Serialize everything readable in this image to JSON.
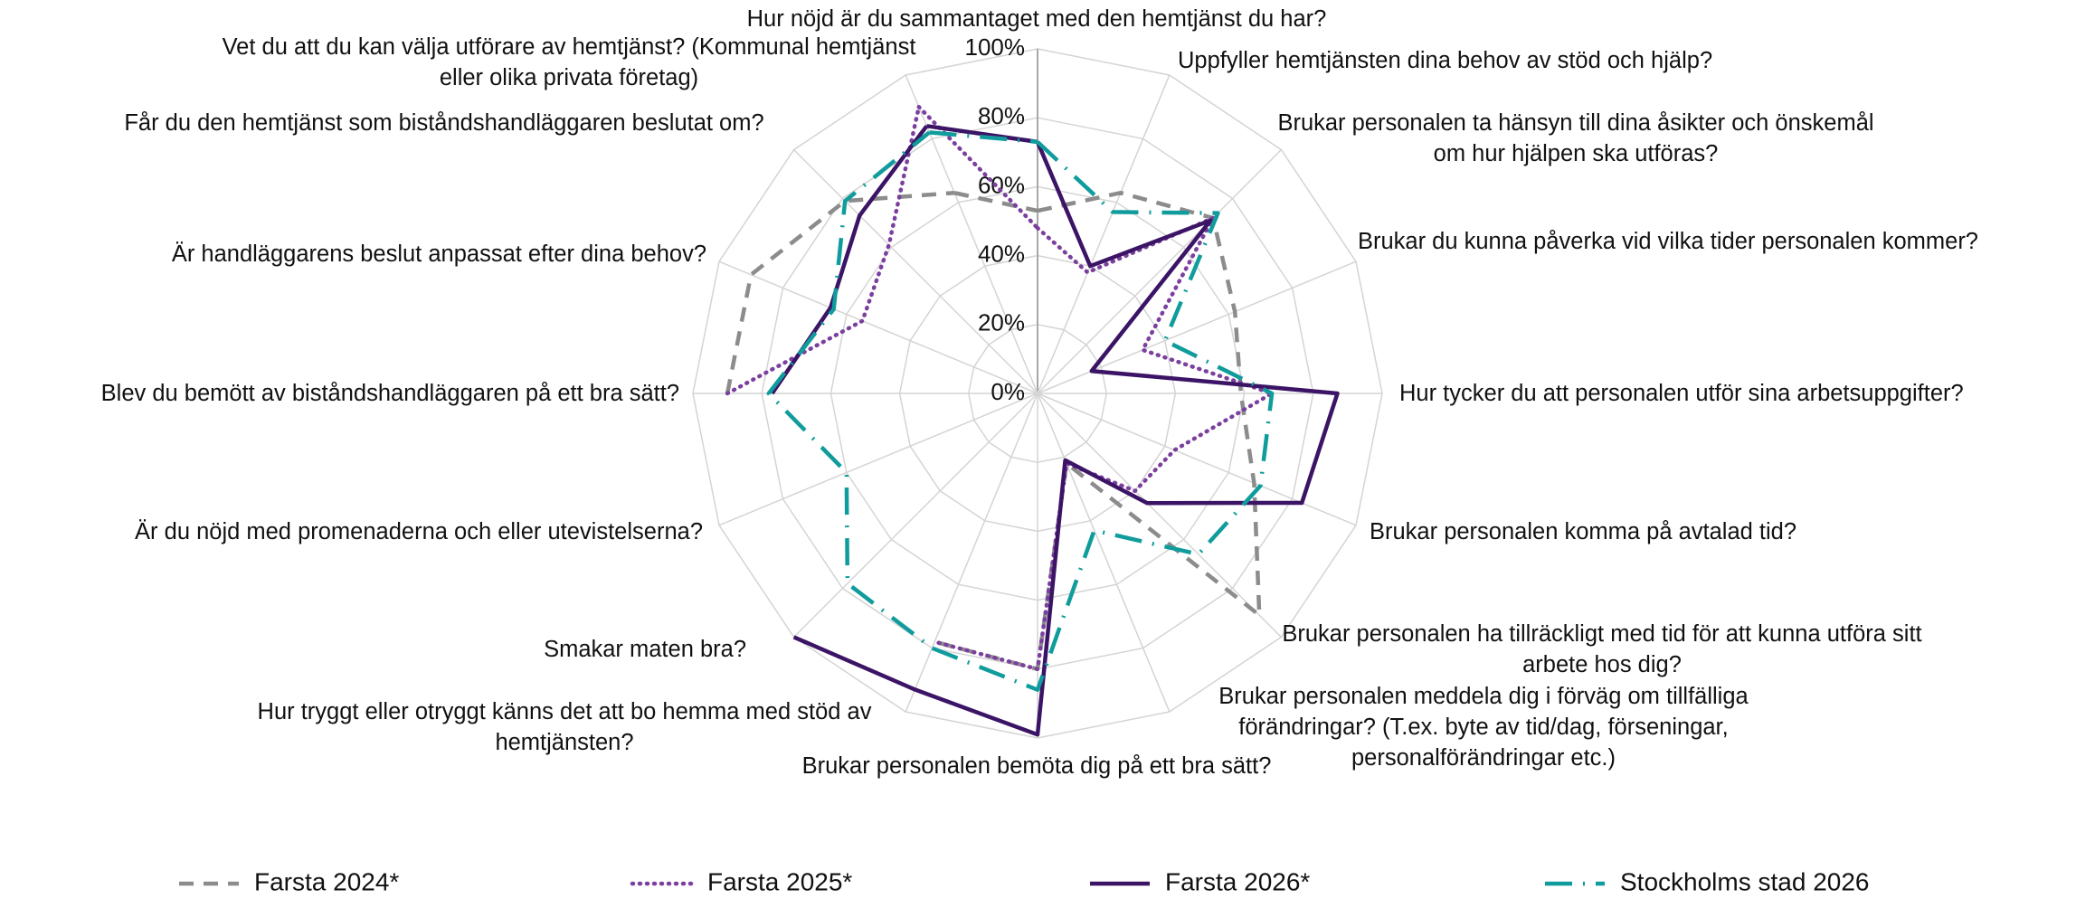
{
  "chart_data": {
    "type": "radar",
    "categories": [
      "Hur nöjd är du sammantaget med den hemtjänst du har?",
      "Uppfyller hemtjänsten dina behov av stöd och hjälp?",
      "Brukar personalen ta hänsyn till dina åsikter och önskemål om hur hjälpen ska utföras?",
      "Brukar du kunna påverka vid vilka tider personalen kommer?",
      "Hur tycker du att personalen utför sina  arbetsuppgifter?",
      "Brukar personalen komma på avtalad tid?",
      "Brukar personalen ha tillräckligt med tid för att kunna utföra sitt arbete hos dig?",
      "Brukar personalen meddela dig i förväg om tillfälliga förändringar? (T.ex. byte av tid/dag, förseningar, personalförändringar etc.)",
      "Brukar personalen bemöta dig på ett bra sätt?",
      "Hur tryggt eller otryggt känns det att bo hemma med stöd av hemtjänsten?",
      "Smakar maten bra?",
      "Är du nöjd med promenaderna och eller utevistelserna?",
      "Blev du bemött av biståndshandläggaren på ett bra sätt?",
      "Är handläggarens beslut anpassat efter dina behov?",
      "Får du den hemtjänst som biståndshandläggaren beslutat om?",
      "Vet du att du kan välja utförare av hemtjänst? (Kommunal hemtjänst eller olika privata företag)"
    ],
    "series": [
      {
        "name": "Farsta 2024*",
        "color": "#8c8c8c",
        "style": "dashed",
        "values": [
          53,
          63,
          72,
          62,
          59,
          68,
          91,
          22,
          80,
          78,
          null,
          null,
          90,
          90,
          79,
          63
        ]
      },
      {
        "name": "Farsta 2025*",
        "color": "#7b3f9e",
        "style": "dotted",
        "values": [
          48,
          38,
          72,
          33,
          68,
          43,
          40,
          22,
          80,
          78,
          null,
          null,
          90,
          55,
          61,
          90
        ]
      },
      {
        "name": "Farsta 2026*",
        "color": "#3b1466",
        "style": "solid",
        "values": [
          73,
          40,
          71,
          17,
          87,
          83,
          45,
          21,
          99,
          93,
          100,
          null,
          77,
          65,
          73,
          84
        ]
      },
      {
        "name": "Stockholms stad 2026",
        "color": "#109c9c",
        "style": "dashdot",
        "values": [
          73,
          57,
          74,
          40,
          68,
          70,
          66,
          43,
          86,
          80,
          78,
          60,
          78,
          64,
          79,
          82
        ]
      }
    ],
    "rlim": [
      0,
      100
    ],
    "rticks": [
      {
        "value": 0,
        "label": "0%"
      },
      {
        "value": 20,
        "label": "20%"
      },
      {
        "value": 40,
        "label": "40%"
      },
      {
        "value": 60,
        "label": "60%"
      },
      {
        "value": 80,
        "label": "80%"
      },
      {
        "value": 100,
        "label": "100%"
      }
    ],
    "grid": true,
    "legend": "bottom"
  }
}
